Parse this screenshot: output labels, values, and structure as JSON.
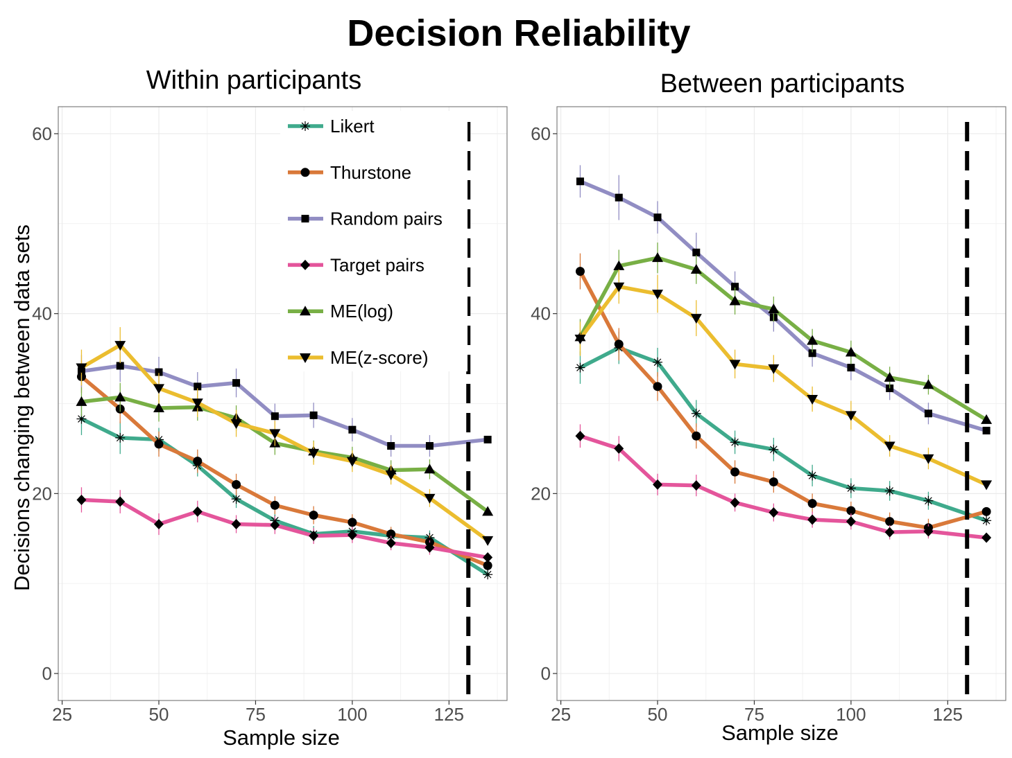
{
  "title": "Decision Reliability",
  "colors": {
    "Likert": "#3faa8c",
    "Thurstone": "#d9793a",
    "Random pairs": "#918dc3",
    "Target pairs": "#e4559b",
    "ME(log)": "#78af45",
    "ME(z-score)": "#ebbd2f"
  },
  "markers": {
    "Likert": "asterisk",
    "Thurstone": "circle",
    "Random pairs": "square",
    "Target pairs": "diamond",
    "ME(log)": "triangle-up",
    "ME(z-score)": "triangle-down"
  },
  "legend": {
    "position": "top-right of left panel",
    "items": [
      "Likert",
      "Thurstone",
      "Random pairs",
      "Target pairs",
      "ME(log)",
      "ME(z-score)"
    ]
  },
  "chart_data": [
    {
      "type": "line",
      "title": "Within participants",
      "xlabel": "Sample size",
      "ylabel": "Decisions changing between data sets",
      "xlim": [
        24,
        140
      ],
      "ylim": [
        -3,
        63
      ],
      "xticks": [
        25,
        50,
        75,
        100,
        125
      ],
      "yticks": [
        0,
        20,
        40,
        60
      ],
      "grid": true,
      "vline": 130,
      "x": [
        30,
        40,
        50,
        60,
        70,
        80,
        90,
        100,
        110,
        120,
        135
      ],
      "series": [
        {
          "name": "Likert",
          "values": [
            28.3,
            26.2,
            26.0,
            23.1,
            19.4,
            17.0,
            15.5,
            15.8,
            15.3,
            15.1,
            11.0
          ],
          "errors": [
            1.8,
            1.8,
            1.3,
            1.2,
            1.0,
            1.0,
            0.9,
            0.9,
            0.8,
            0.8,
            0
          ]
        },
        {
          "name": "Thurstone",
          "values": [
            33.0,
            29.4,
            25.5,
            23.6,
            21.0,
            18.7,
            17.6,
            16.8,
            15.5,
            14.6,
            12.0
          ],
          "errors": [
            1.8,
            1.6,
            1.4,
            1.3,
            1.2,
            1.0,
            1.0,
            0.9,
            0.8,
            0.8,
            0
          ]
        },
        {
          "name": "Random pairs",
          "values": [
            33.6,
            34.2,
            33.5,
            31.9,
            32.3,
            28.6,
            28.7,
            27.1,
            25.3,
            25.3,
            26.0
          ],
          "errors": [
            1.8,
            1.8,
            1.7,
            1.6,
            1.6,
            1.4,
            1.4,
            1.3,
            1.2,
            1.2,
            0
          ]
        },
        {
          "name": "Target pairs",
          "values": [
            19.3,
            19.1,
            16.6,
            18.0,
            16.6,
            16.5,
            15.3,
            15.4,
            14.5,
            14.0,
            12.9
          ],
          "errors": [
            1.4,
            1.3,
            1.2,
            1.2,
            1.0,
            1.0,
            0.9,
            0.9,
            0.8,
            0.8,
            0
          ]
        },
        {
          "name": "ME(log)",
          "values": [
            30.2,
            30.7,
            29.5,
            29.6,
            28.4,
            25.6,
            24.7,
            24.0,
            22.6,
            22.7,
            18.0
          ],
          "errors": [
            1.6,
            1.6,
            1.5,
            1.5,
            1.4,
            1.3,
            1.2,
            1.2,
            1.1,
            1.1,
            0
          ]
        },
        {
          "name": "ME(z-score)",
          "values": [
            34.0,
            36.5,
            31.7,
            30.1,
            27.8,
            26.7,
            24.5,
            23.6,
            22.1,
            19.5,
            14.8
          ],
          "errors": [
            2.0,
            2.0,
            1.7,
            1.6,
            1.5,
            1.4,
            1.3,
            1.2,
            1.1,
            1.0,
            0
          ]
        }
      ]
    },
    {
      "type": "line",
      "title": "Between participants",
      "xlabel": "Sample size",
      "ylabel": "",
      "xlim": [
        24,
        140
      ],
      "ylim": [
        -3,
        63
      ],
      "xticks": [
        25,
        50,
        75,
        100,
        125
      ],
      "yticks": [
        0,
        20,
        40,
        60
      ],
      "grid": true,
      "vline": 130,
      "x": [
        30,
        40,
        50,
        60,
        70,
        80,
        90,
        100,
        110,
        120,
        135
      ],
      "series": [
        {
          "name": "Likert",
          "values": [
            34.0,
            36.2,
            34.6,
            28.9,
            25.7,
            24.9,
            22.0,
            20.6,
            20.3,
            19.2,
            17.0
          ],
          "errors": [
            1.8,
            1.8,
            1.6,
            1.5,
            1.3,
            1.3,
            1.2,
            1.1,
            1.1,
            1.0,
            0
          ]
        },
        {
          "name": "Thurstone",
          "values": [
            44.7,
            36.6,
            31.9,
            26.4,
            22.4,
            21.3,
            18.9,
            18.1,
            16.9,
            16.2,
            18.0
          ],
          "errors": [
            2.0,
            1.8,
            1.6,
            1.4,
            1.3,
            1.2,
            1.1,
            1.0,
            1.0,
            1.0,
            0
          ]
        },
        {
          "name": "Random pairs",
          "values": [
            54.7,
            52.9,
            50.7,
            46.8,
            43.0,
            39.6,
            35.6,
            34.0,
            31.7,
            28.9,
            27.0
          ],
          "errors": [
            1.8,
            2.5,
            1.8,
            2.2,
            1.7,
            1.6,
            1.5,
            1.4,
            1.3,
            1.2,
            0
          ]
        },
        {
          "name": "Target pairs",
          "values": [
            26.4,
            25.0,
            21.0,
            20.9,
            19.0,
            17.9,
            17.1,
            16.9,
            15.7,
            15.8,
            15.1
          ],
          "errors": [
            1.3,
            1.4,
            1.2,
            1.2,
            1.0,
            1.0,
            0.9,
            0.9,
            0.8,
            0.8,
            0
          ]
        },
        {
          "name": "ME(log)",
          "values": [
            37.4,
            45.3,
            46.2,
            44.9,
            41.4,
            40.5,
            37.0,
            35.7,
            32.9,
            32.1,
            28.2
          ],
          "errors": [
            2.0,
            1.8,
            1.7,
            1.6,
            1.5,
            1.4,
            1.3,
            1.3,
            1.2,
            1.1,
            0
          ]
        },
        {
          "name": "ME(z-score)",
          "values": [
            37.2,
            43.0,
            42.2,
            39.5,
            34.4,
            33.9,
            30.5,
            28.7,
            25.3,
            23.9,
            21.0
          ],
          "errors": [
            1.9,
            1.9,
            2.1,
            2.0,
            1.6,
            1.5,
            1.4,
            1.6,
            1.2,
            1.2,
            0
          ]
        }
      ]
    }
  ]
}
